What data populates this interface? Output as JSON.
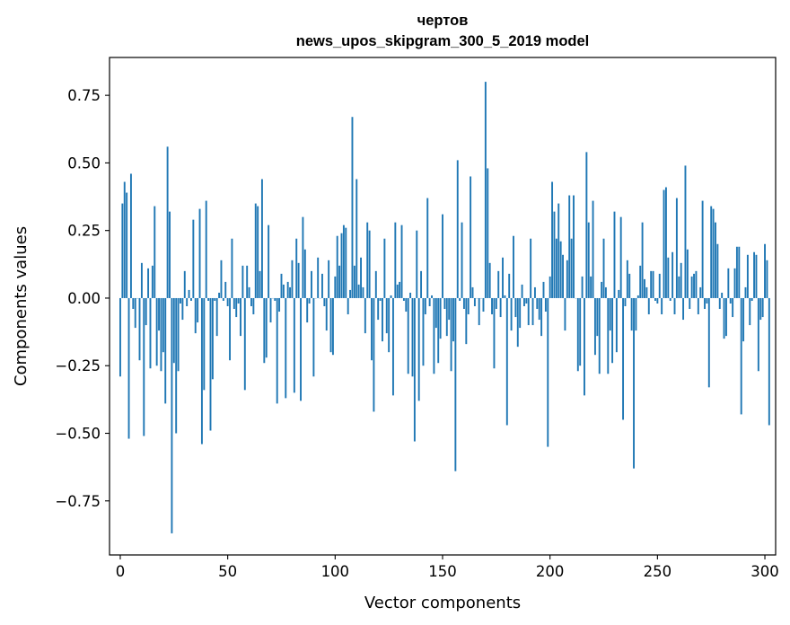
{
  "chart_data": {
    "type": "bar",
    "title": "чертов",
    "subtitle": "news_upos_skipgram_300_5_2019 model",
    "xlabel": "Vector components",
    "ylabel": "Components values",
    "xlim": [
      -5,
      305
    ],
    "ylim": [
      -0.95,
      0.89
    ],
    "x_ticks": [
      0,
      50,
      100,
      150,
      200,
      250,
      300
    ],
    "x_tick_labels": [
      "0",
      "50",
      "100",
      "150",
      "200",
      "250",
      "300"
    ],
    "y_ticks": [
      0.75,
      0.5,
      0.25,
      0.0,
      -0.25,
      -0.5,
      -0.75
    ],
    "y_tick_labels": [
      "0.75",
      "0.50",
      "0.25",
      "0.00",
      "−0.25",
      "−0.50",
      "−0.75"
    ],
    "bar_color": "#1f77b4",
    "grid": false,
    "values": [
      -0.29,
      0.35,
      0.43,
      0.39,
      -0.52,
      0.46,
      -0.04,
      -0.11,
      0.0,
      -0.23,
      0.13,
      -0.51,
      -0.1,
      0.11,
      -0.26,
      0.12,
      0.34,
      -0.25,
      -0.12,
      -0.27,
      -0.2,
      -0.39,
      0.56,
      0.32,
      -0.87,
      -0.24,
      -0.5,
      -0.27,
      -0.02,
      -0.08,
      0.1,
      -0.03,
      0.03,
      -0.01,
      0.29,
      -0.13,
      -0.09,
      0.33,
      -0.54,
      -0.34,
      0.36,
      -0.01,
      -0.49,
      -0.3,
      -0.01,
      -0.14,
      0.02,
      0.14,
      -0.01,
      0.06,
      -0.03,
      -0.23,
      0.22,
      -0.04,
      -0.07,
      -0.02,
      -0.14,
      0.12,
      -0.34,
      0.12,
      0.04,
      -0.03,
      -0.06,
      0.35,
      0.34,
      0.1,
      0.44,
      -0.24,
      -0.22,
      0.27,
      -0.09,
      0.0,
      -0.01,
      -0.39,
      -0.05,
      0.09,
      0.05,
      -0.37,
      0.06,
      0.04,
      0.14,
      -0.35,
      0.22,
      0.13,
      -0.38,
      0.3,
      0.18,
      -0.09,
      -0.02,
      0.1,
      -0.29,
      0.0,
      0.15,
      0.0,
      0.09,
      -0.03,
      -0.12,
      0.14,
      -0.2,
      -0.21,
      0.08,
      0.23,
      0.12,
      0.24,
      0.27,
      0.26,
      -0.06,
      0.03,
      0.67,
      0.12,
      0.44,
      0.05,
      0.15,
      0.04,
      -0.13,
      0.28,
      0.25,
      -0.23,
      -0.42,
      0.1,
      -0.08,
      -0.01,
      -0.16,
      0.22,
      -0.13,
      -0.2,
      0.01,
      -0.36,
      0.28,
      0.05,
      0.06,
      0.27,
      -0.01,
      -0.05,
      -0.28,
      0.02,
      -0.29,
      -0.53,
      0.25,
      -0.38,
      0.1,
      -0.25,
      -0.06,
      0.37,
      -0.03,
      0.01,
      -0.28,
      -0.11,
      -0.24,
      -0.15,
      0.31,
      -0.04,
      -0.14,
      -0.08,
      -0.27,
      -0.16,
      -0.64,
      0.51,
      -0.01,
      0.28,
      -0.04,
      -0.17,
      -0.06,
      0.45,
      0.04,
      -0.03,
      0.0,
      -0.1,
      0.0,
      -0.05,
      0.8,
      0.48,
      0.13,
      -0.06,
      -0.26,
      -0.04,
      0.1,
      -0.07,
      0.15,
      0.01,
      -0.47,
      0.09,
      -0.12,
      0.23,
      -0.07,
      -0.18,
      -0.11,
      0.05,
      -0.03,
      -0.02,
      -0.1,
      0.22,
      -0.1,
      0.04,
      -0.04,
      -0.08,
      -0.14,
      0.06,
      -0.05,
      -0.55,
      0.08,
      0.43,
      0.32,
      0.22,
      0.35,
      0.21,
      0.16,
      -0.12,
      0.14,
      0.38,
      0.22,
      0.38,
      0.0,
      -0.27,
      -0.25,
      0.08,
      -0.36,
      0.54,
      0.28,
      0.08,
      0.36,
      -0.21,
      -0.14,
      -0.28,
      0.06,
      0.22,
      0.04,
      -0.28,
      -0.12,
      -0.24,
      0.32,
      -0.2,
      0.03,
      0.3,
      -0.45,
      -0.03,
      0.14,
      0.09,
      -0.12,
      -0.63,
      -0.12,
      0.01,
      0.12,
      0.28,
      0.07,
      0.04,
      -0.06,
      0.1,
      0.1,
      -0.01,
      -0.02,
      0.09,
      -0.06,
      0.4,
      0.41,
      0.15,
      -0.01,
      0.17,
      -0.06,
      0.37,
      0.08,
      0.13,
      -0.08,
      0.49,
      0.18,
      -0.04,
      0.08,
      0.09,
      0.1,
      -0.06,
      0.04,
      0.36,
      -0.04,
      -0.02,
      -0.33,
      0.34,
      0.33,
      0.28,
      0.2,
      -0.04,
      0.02,
      -0.15,
      -0.14,
      0.11,
      -0.02,
      -0.07,
      0.11,
      0.19,
      0.19,
      -0.43,
      -0.16,
      0.04,
      0.16,
      -0.1,
      -0.01,
      0.17,
      0.16,
      -0.27,
      -0.08,
      -0.07,
      0.2,
      0.14,
      -0.47
    ]
  }
}
